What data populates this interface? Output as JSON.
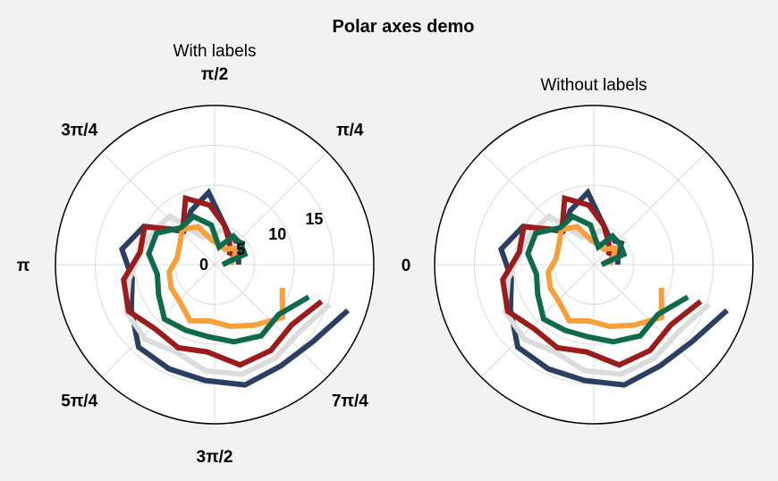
{
  "figure_title": "Polar axes demo",
  "colors": {
    "background": "#f2f2f2",
    "axes_face": "#ffffff",
    "grid": "#dcdcdc",
    "spine": "#000000"
  },
  "chart_data": [
    {
      "type": "line",
      "projection": "polar",
      "title": "With labels",
      "show_labels": true,
      "grid": true,
      "rlim": [
        0,
        20
      ],
      "theta_tick_labels": [
        "0",
        "π/4",
        "π/2",
        "3π/4",
        "π",
        "5π/4",
        "3π/2",
        "7π/4"
      ],
      "r_ticks": [
        0,
        5,
        10,
        15
      ],
      "r_tick_labels": [
        "0",
        "5",
        "10",
        "15"
      ],
      "theta_unit": "radians",
      "series": [
        {
          "color": "#2b3f63",
          "theta": [
            0,
            0.331,
            0.661,
            0.992,
            1.323,
            1.653,
            1.984,
            2.315,
            2.645,
            2.976,
            3.307,
            3.637,
            3.968,
            4.299,
            4.629,
            4.96,
            5.291,
            5.621,
            5.952
          ],
          "r": [
            3.0,
            3.2,
            4.4,
            3.8,
            5.1,
            9.1,
            7.4,
            5.7,
            10.1,
            11.8,
            10.5,
            11.9,
            14.1,
            14.3,
            14.6,
            15.6,
            15.2,
            15.7,
            17.7
          ]
        },
        {
          "color": "#dcdcdc",
          "theta": [
            0,
            0.331,
            0.661,
            0.992,
            1.323,
            1.653,
            1.984,
            2.315,
            2.645,
            2.976,
            3.307,
            3.637,
            3.968,
            4.299,
            4.629,
            4.96,
            5.291,
            5.621,
            5.952
          ],
          "r": [
            2.0,
            2.4,
            3.1,
            3.5,
            4.6,
            3.6,
            3.8,
            8.3,
            8.8,
            9.4,
            10.9,
            12.6,
            12.8,
            12.0,
            13.4,
            14.2,
            14.0,
            13.6,
            15.3
          ]
        },
        {
          "color": "#9b1c1c",
          "theta": [
            0,
            0.331,
            0.661,
            0.992,
            1.323,
            1.653,
            1.984,
            2.315,
            2.645,
            2.976,
            3.307,
            3.637,
            3.968,
            4.299,
            4.629,
            4.96,
            5.291,
            5.621,
            5.952
          ],
          "r": [
            1.0,
            3.1,
            2.4,
            3.4,
            5.1,
            7.5,
            9.1,
            5.9,
            10.0,
            9.5,
            11.6,
            12.3,
            11.0,
            11.4,
            11.0,
            13.0,
            12.9,
            12.3,
            14.2
          ]
        },
        {
          "color": "#f5a03c",
          "theta": [
            0,
            0.331,
            0.661,
            0.992,
            1.323,
            1.653,
            1.984,
            2.315,
            2.645,
            2.976,
            3.307,
            3.637,
            3.968,
            4.299,
            4.629,
            4.96,
            5.291,
            5.621,
            5.952
          ],
          "r": [
            2.0,
            2.6,
            3.4,
            2.3,
            2.6,
            3.0,
            5.2,
            6.0,
            5.0,
            4.8,
            5.8,
            6.2,
            6.4,
            7.7,
            7.1,
            8.0,
            9.1,
            10.8,
            9.0
          ]
        },
        {
          "color": "#0e6a4a",
          "theta": [
            0,
            0.331,
            0.661,
            0.992,
            1.323,
            1.653,
            1.984,
            2.315,
            2.645,
            2.976,
            3.307,
            3.637,
            3.968,
            4.299,
            4.629,
            4.96,
            5.291,
            5.621,
            5.952
          ],
          "r": [
            1.0,
            4.0,
            4.2,
            4.3,
            2.3,
            5.0,
            6.6,
            6.3,
            8.3,
            8.4,
            7.3,
            8.0,
            9.3,
            9.0,
            9.1,
            10.0,
            10.7,
            10.2,
            12.5
          ]
        }
      ]
    },
    {
      "type": "line",
      "projection": "polar",
      "title": "Without labels",
      "show_labels": false,
      "grid": true,
      "rlim": [
        0,
        20
      ],
      "series_same_as_first_chart": true
    }
  ]
}
